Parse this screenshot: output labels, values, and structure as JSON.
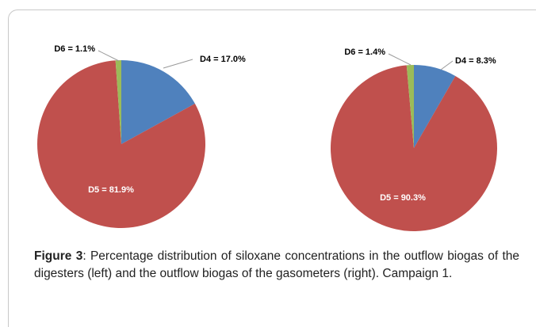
{
  "chart_data": [
    {
      "type": "pie",
      "values": [
        17.0,
        81.9,
        1.1
      ],
      "value_labels": [
        "D4 = 17.0%",
        "D5 = 81.9%",
        "D6 = 1.1%"
      ],
      "colors": [
        "#4f81bd",
        "#c0504d",
        "#9bbb59"
      ]
    },
    {
      "type": "pie",
      "values": [
        8.3,
        90.3,
        1.4
      ],
      "value_labels": [
        "D4 = 8.3%",
        "D5 = 90.3%",
        "D6 = 1.4%"
      ],
      "colors": [
        "#4f81bd",
        "#c0504d",
        "#9bbb59"
      ]
    }
  ],
  "caption": {
    "label": "Figure 3",
    "text": ": Percentage distribution of siloxane concentrations in the outflow biogas of the digesters (left) and the outflow biogas of the gasometers (right). Campaign 1."
  }
}
